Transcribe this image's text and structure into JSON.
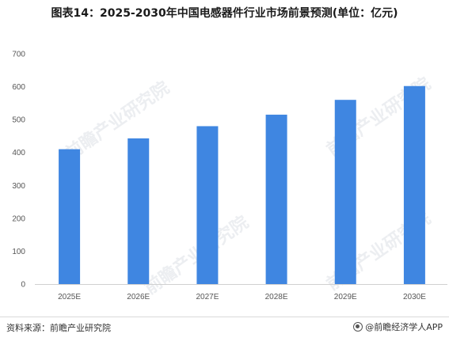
{
  "title": "图表14：2025-2030年中国电感器件行业市场前景预测(单位：亿元)",
  "source_text": "资料来源：前瞻产业研究院",
  "brand_text": "@前瞻经济学人APP",
  "watermark": "前瞻产业研究院",
  "colors": {
    "bar": "#3f86e1",
    "axis": "#d0d0d0",
    "text": "#555555"
  },
  "chart_data": {
    "type": "bar",
    "title": "图表14：2025-2030年中国电感器件行业市场前景预测(单位：亿元)",
    "categories": [
      "2025E",
      "2026E",
      "2027E",
      "2028E",
      "2029E",
      "2030E"
    ],
    "values": [
      410,
      443,
      480,
      515,
      560,
      602
    ],
    "ylim": [
      0,
      700
    ],
    "yticks": [
      0,
      100,
      200,
      300,
      400,
      500,
      600,
      700
    ],
    "xlabel": "",
    "ylabel": "",
    "grid": false,
    "legend": "none"
  }
}
